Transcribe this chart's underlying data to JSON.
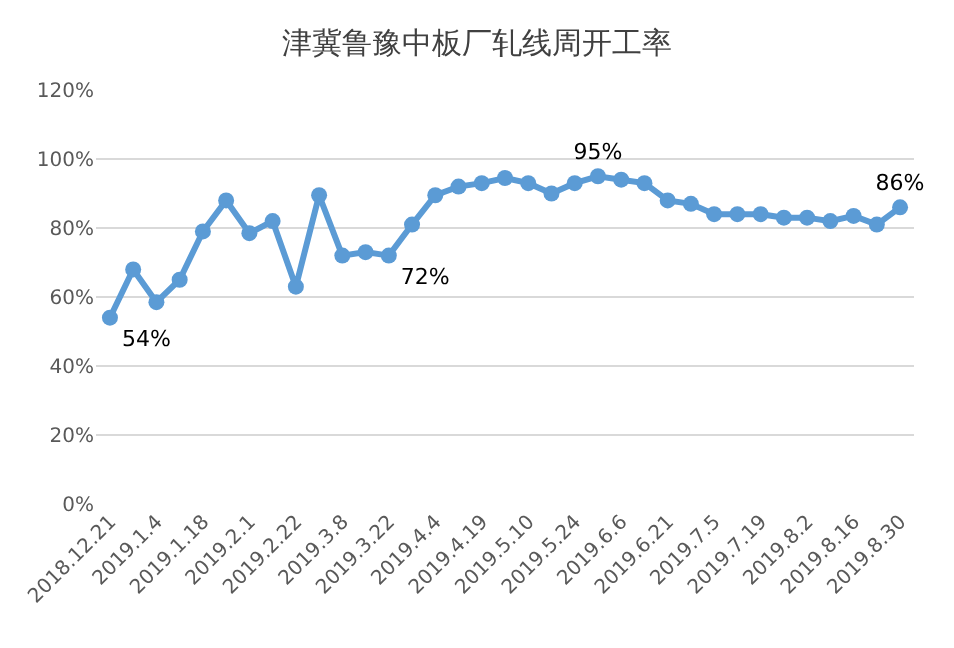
{
  "chart_data": {
    "type": "line",
    "title": "津冀鲁豫中板厂轧线周开工率",
    "categories": [
      "2018.12.21",
      null,
      "2019.1.4",
      null,
      "2019.1.18",
      null,
      "2019.2.1",
      null,
      "2019.2.22",
      null,
      "2019.3.8",
      null,
      "2019.3.22",
      null,
      "2019.4.4",
      null,
      "2019.4.19",
      null,
      "2019.5.10",
      null,
      "2019.5.24",
      null,
      "2019.6.6",
      null,
      "2019.6.21",
      null,
      "2019.7.5",
      null,
      "2019.7.19",
      null,
      "2019.8.2",
      null,
      "2019.8.16",
      null,
      "2019.8.30"
    ],
    "series": [
      {
        "color": "#5b9bd5",
        "values": [
          54,
          68,
          58.5,
          65,
          79,
          88,
          78.5,
          82,
          63,
          89.5,
          72,
          73,
          72,
          81,
          89.5,
          92,
          93,
          94.5,
          93,
          90,
          93,
          95,
          94,
          93,
          88,
          87,
          84,
          84,
          84,
          83,
          83,
          82,
          83.5,
          81,
          86
        ],
        "value_labels": [
          "54%",
          null,
          null,
          null,
          null,
          null,
          null,
          null,
          null,
          null,
          null,
          null,
          "72%",
          null,
          null,
          null,
          null,
          null,
          null,
          null,
          null,
          "95%",
          null,
          null,
          null,
          null,
          null,
          null,
          null,
          null,
          null,
          null,
          null,
          null,
          "86%"
        ]
      }
    ],
    "ylim": [
      0,
      120
    ],
    "yticks": [
      {
        "value": 0,
        "label": "0%"
      },
      {
        "value": 20,
        "label": "20%"
      },
      {
        "value": 40,
        "label": "40%"
      },
      {
        "value": 60,
        "label": "60%"
      },
      {
        "value": 80,
        "label": "80%"
      },
      {
        "value": 100,
        "label": "100%"
      },
      {
        "value": 120,
        "label": "120%"
      }
    ],
    "grid": "y",
    "marker": "circle",
    "line_style": "solid",
    "legend": false
  }
}
